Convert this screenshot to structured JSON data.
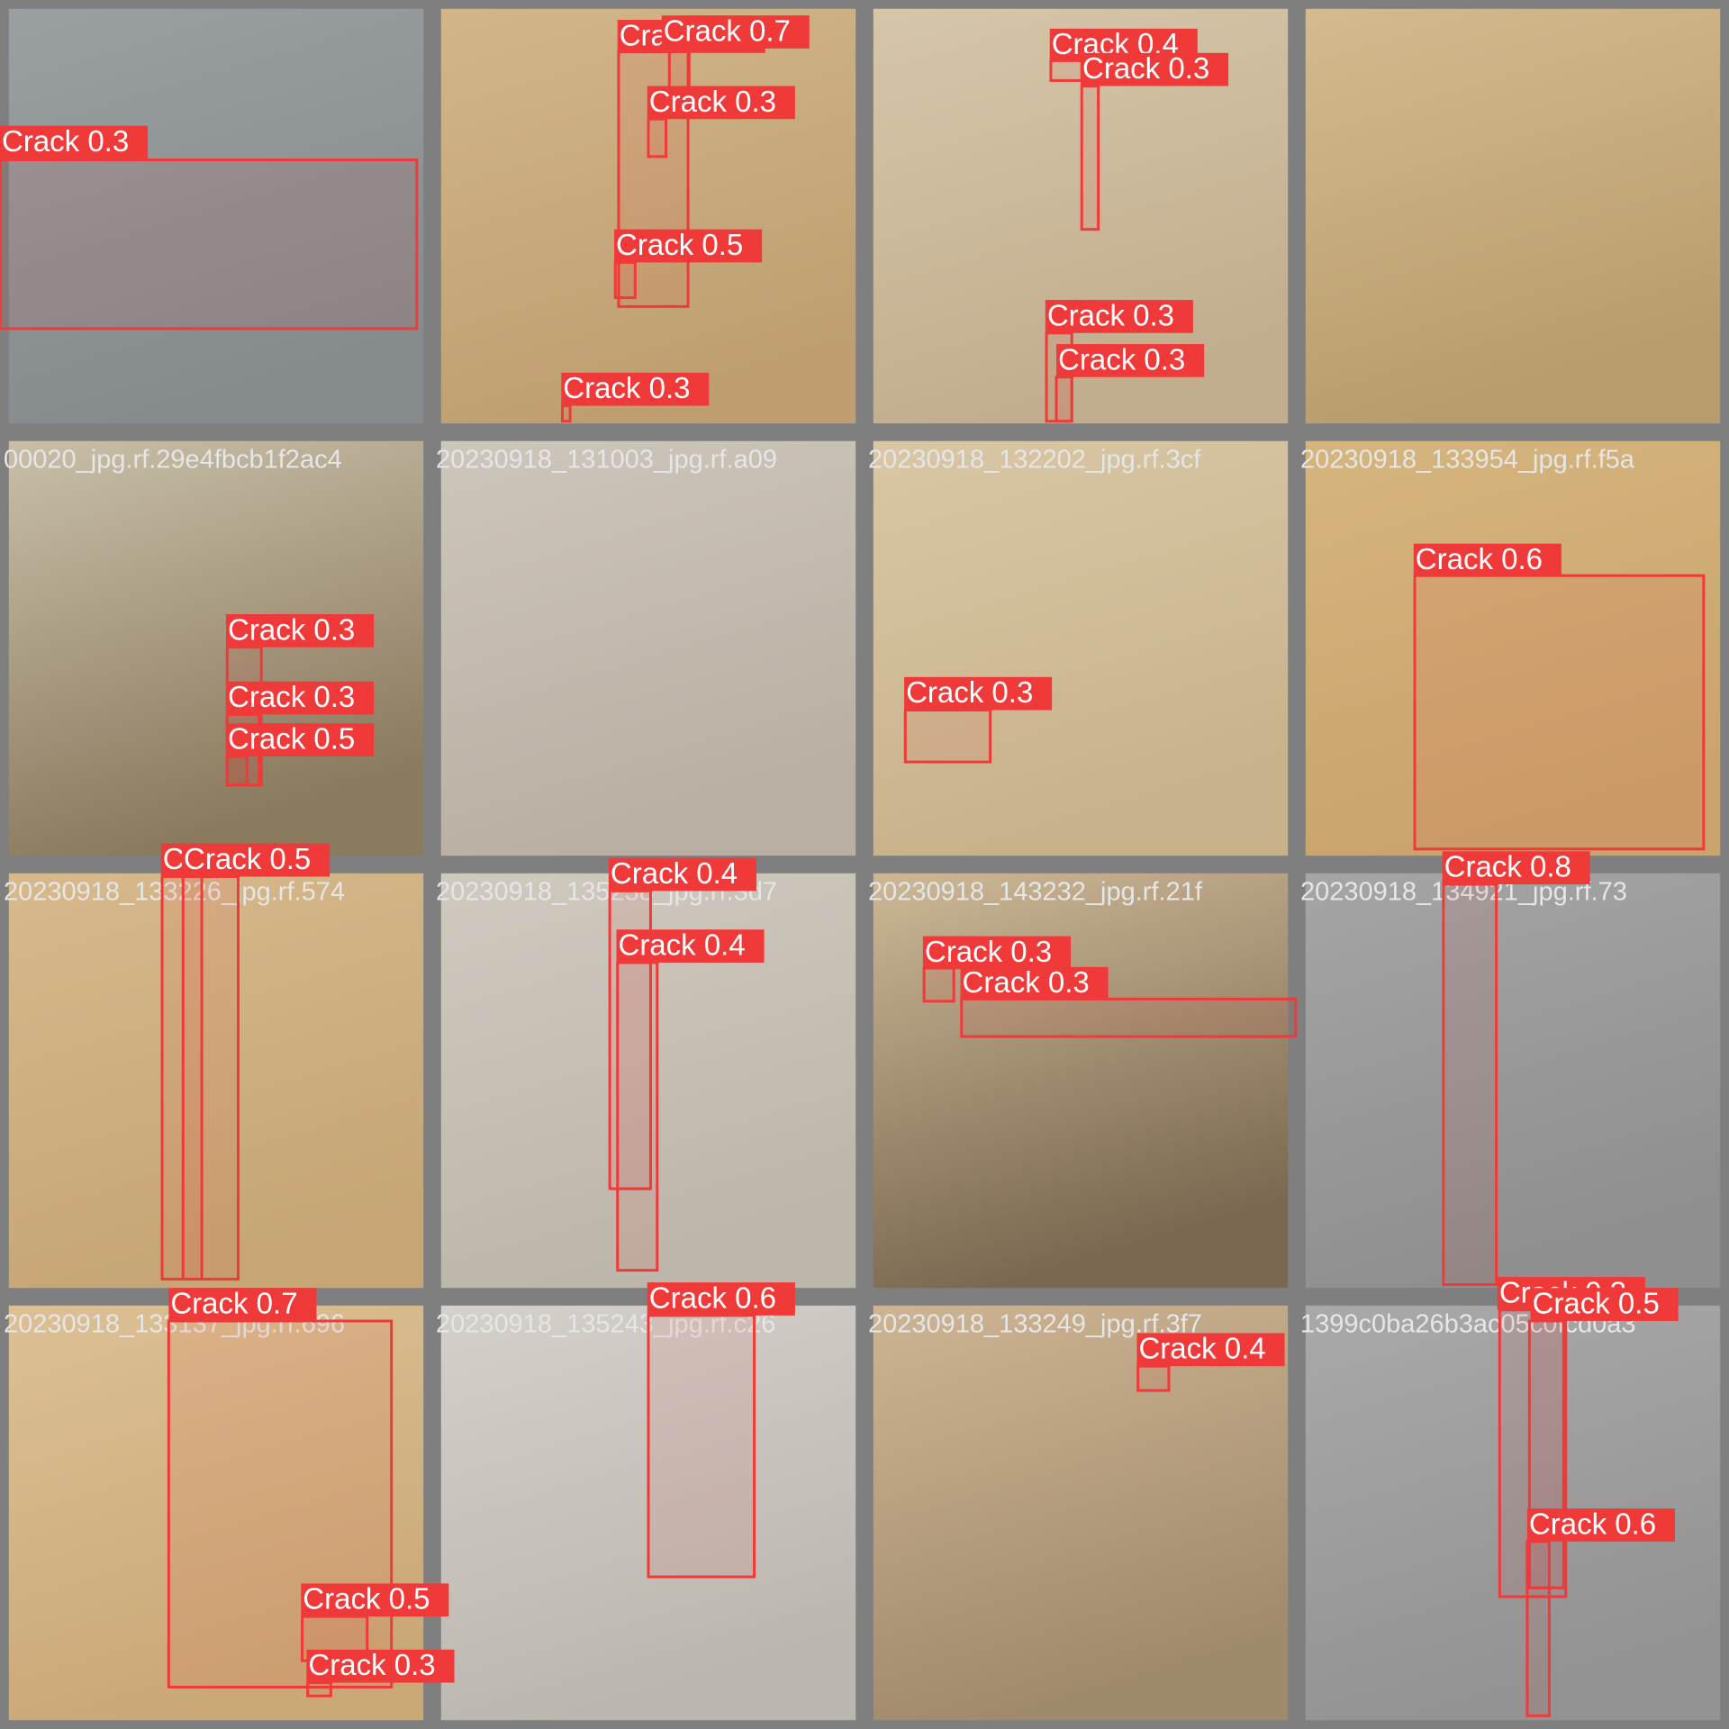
{
  "tiles": [
    {
      "caption": null,
      "detections": [
        {
          "label": "Crack 0.3"
        }
      ]
    },
    {
      "caption": null,
      "detections": [
        {
          "label": "Crack 0.3"
        },
        {
          "label": "Crack 0.7"
        },
        {
          "label": "Crack 0.3"
        },
        {
          "label": "Crack 0.5"
        },
        {
          "label": "Crack 0.3"
        }
      ]
    },
    {
      "caption": null,
      "detections": [
        {
          "label": "Crack 0.4"
        },
        {
          "label": "Crack 0.3"
        },
        {
          "label": "Crack 0.3"
        },
        {
          "label": "Crack 0.3"
        }
      ]
    },
    {
      "caption": null,
      "detections": []
    },
    {
      "caption": "00020_jpg.rf.29e4fbcb1f2ac4",
      "detections": [
        {
          "label": "Crack 0.3"
        },
        {
          "label": "Crack 0.3"
        },
        {
          "label": "Crack 0.5"
        }
      ]
    },
    {
      "caption": "20230918_131003_jpg.rf.a09",
      "detections": []
    },
    {
      "caption": "20230918_132202_jpg.rf.3cf",
      "detections": [
        {
          "label": "Crack 0.3"
        }
      ]
    },
    {
      "caption": "20230918_133954_jpg.rf.f5a",
      "detections": [
        {
          "label": "Crack 0.6"
        }
      ]
    },
    {
      "caption": "20230918_133226_jpg.rf.574",
      "detections": [
        {
          "label": "Crack 0.4"
        },
        {
          "label": "Crack 0.5"
        }
      ]
    },
    {
      "caption": "20230918_135238_jpg.rf.3d7",
      "detections": [
        {
          "label": "Crack 0.4"
        },
        {
          "label": "Crack 0.4"
        }
      ]
    },
    {
      "caption": "20230918_143232_jpg.rf.21f",
      "detections": [
        {
          "label": "Crack 0.3"
        },
        {
          "label": "Crack 0.3"
        }
      ]
    },
    {
      "caption": "20230918_134921_jpg.rf.73",
      "detections": [
        {
          "label": "Crack 0.8"
        }
      ]
    },
    {
      "caption": "20230918_133137_jpg.rf.696",
      "detections": [
        {
          "label": "Crack 0.7"
        },
        {
          "label": "Crack 0.5"
        },
        {
          "label": "Crack 0.3"
        }
      ]
    },
    {
      "caption": "20230918_135243_jpg.rf.c26",
      "detections": [
        {
          "label": "Crack 0.6"
        }
      ]
    },
    {
      "caption": "20230918_133249_jpg.rf.3f7",
      "detections": [
        {
          "label": "Crack 0.4"
        }
      ]
    },
    {
      "caption": "1399c0ba26b3ac05c0fcd0a3",
      "detections": [
        {
          "label": "Crack 0.3"
        },
        {
          "label": "Crack 0.5"
        },
        {
          "label": "Crack 0.6"
        }
      ]
    }
  ]
}
